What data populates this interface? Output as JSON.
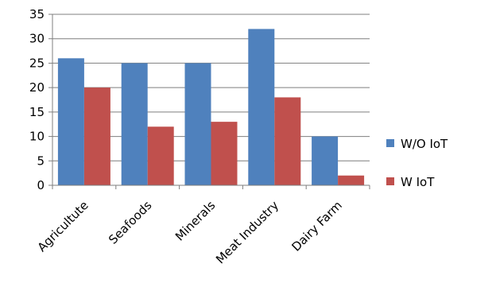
{
  "chart_data": {
    "type": "bar",
    "categories": [
      "Agricultute",
      "Seafoods",
      "Minerals",
      "Meat Industry",
      "Dairy Farm"
    ],
    "series": [
      {
        "name": "W/O IoT",
        "values": [
          26,
          25,
          25,
          32,
          10
        ],
        "color": "#4F81BD"
      },
      {
        "name": "W IoT",
        "values": [
          20,
          12,
          13,
          18,
          2
        ],
        "color": "#C0504D"
      }
    ],
    "yticks": [
      "0",
      "5",
      "10",
      "15",
      "20",
      "25",
      "30",
      "35"
    ],
    "ylim": [
      0,
      35
    ],
    "grid": true,
    "legend_position": "right"
  }
}
